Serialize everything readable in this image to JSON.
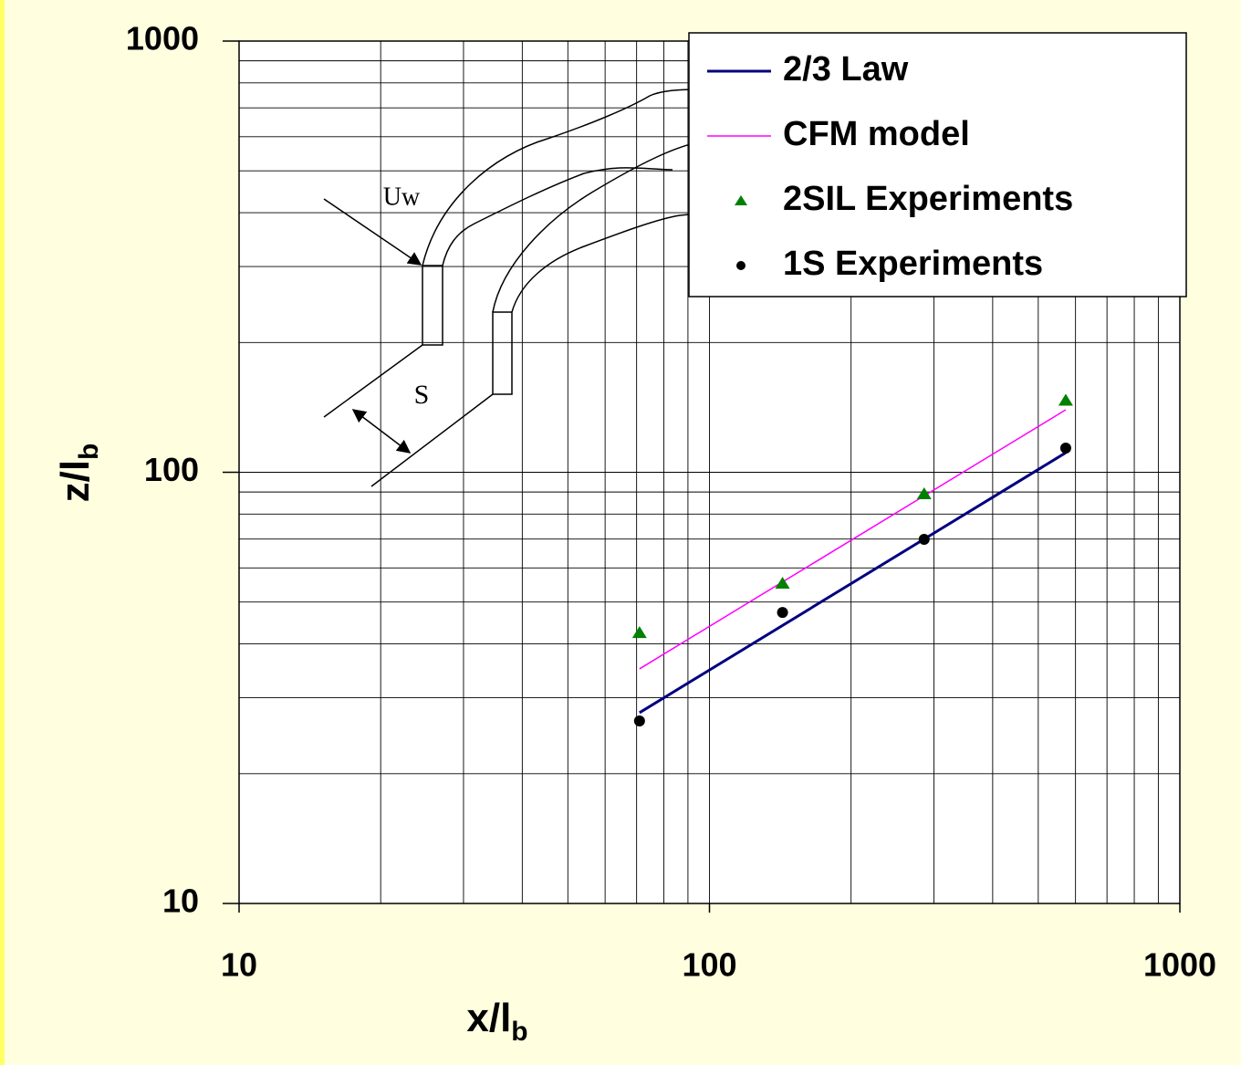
{
  "chart_data": {
    "type": "line",
    "x_label": "x/l",
    "x_label_sub": "b",
    "y_label": "z/l",
    "y_label_sub": "b",
    "log_x": true,
    "log_y": true,
    "grid": true,
    "xlim": [
      10,
      1000
    ],
    "ylim": [
      10,
      1000
    ],
    "xticks": [
      10,
      100,
      1000
    ],
    "yticks": [
      10,
      100,
      1000
    ],
    "legend": "top-right",
    "annotations": [
      "Uw",
      "S"
    ],
    "series": [
      {
        "name": "2/3 Law",
        "color": "#000080",
        "mode": "line",
        "x": [
          71,
          572
        ],
        "values": [
          27.7,
          111
        ]
      },
      {
        "name": "CFM model",
        "color": "#ff00ff",
        "mode": "line",
        "x": [
          71,
          572
        ],
        "values": [
          35.0,
          139.6
        ]
      },
      {
        "name": "2SIL Experiments",
        "color": "#008000",
        "mode": "triangle",
        "x": [
          71,
          143,
          286,
          572
        ],
        "values": [
          42.5,
          55.3,
          89.2,
          147
        ]
      },
      {
        "name": "1S Experiments",
        "color": "#000000",
        "mode": "dot",
        "x": [
          71,
          143,
          286,
          572
        ],
        "values": [
          26.5,
          47.3,
          69.9,
          113.8
        ]
      }
    ]
  }
}
